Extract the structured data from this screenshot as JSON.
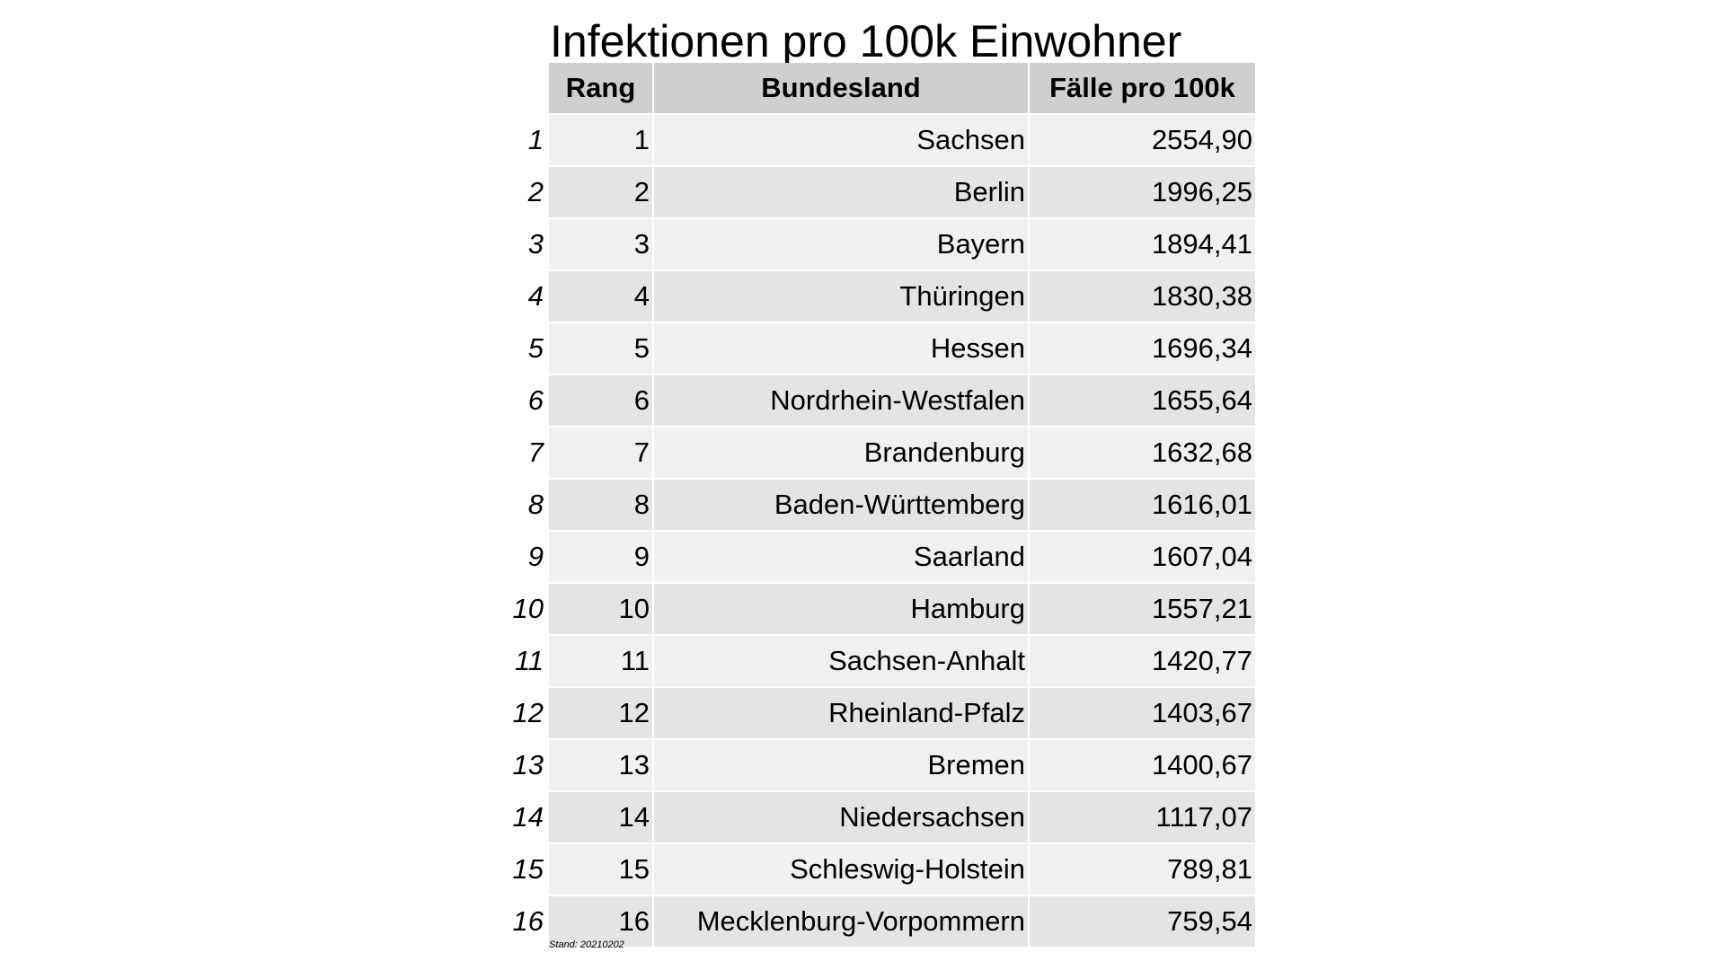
{
  "chart_data": {
    "type": "table",
    "title": "Infektionen pro 100k Einwohner",
    "columns": [
      "Rang",
      "Bundesland",
      "Fälle pro 100k"
    ],
    "rows": [
      {
        "index": "1",
        "rank": "1",
        "state": "Sachsen",
        "value": "2554,90"
      },
      {
        "index": "2",
        "rank": "2",
        "state": "Berlin",
        "value": "1996,25"
      },
      {
        "index": "3",
        "rank": "3",
        "state": "Bayern",
        "value": "1894,41"
      },
      {
        "index": "4",
        "rank": "4",
        "state": "Thüringen",
        "value": "1830,38"
      },
      {
        "index": "5",
        "rank": "5",
        "state": "Hessen",
        "value": "1696,34"
      },
      {
        "index": "6",
        "rank": "6",
        "state": "Nordrhein-Westfalen",
        "value": "1655,64"
      },
      {
        "index": "7",
        "rank": "7",
        "state": "Brandenburg",
        "value": "1632,68"
      },
      {
        "index": "8",
        "rank": "8",
        "state": "Baden-Württemberg",
        "value": "1616,01"
      },
      {
        "index": "9",
        "rank": "9",
        "state": "Saarland",
        "value": "1607,04"
      },
      {
        "index": "10",
        "rank": "10",
        "state": "Hamburg",
        "value": "1557,21"
      },
      {
        "index": "11",
        "rank": "11",
        "state": "Sachsen-Anhalt",
        "value": "1420,77"
      },
      {
        "index": "12",
        "rank": "12",
        "state": "Rheinland-Pfalz",
        "value": "1403,67"
      },
      {
        "index": "13",
        "rank": "13",
        "state": "Bremen",
        "value": "1400,67"
      },
      {
        "index": "14",
        "rank": "14",
        "state": "Niedersachsen",
        "value": "1117,07"
      },
      {
        "index": "15",
        "rank": "15",
        "state": "Schleswig-Holstein",
        "value": "789,81"
      },
      {
        "index": "16",
        "rank": "16",
        "state": "Mecklenburg-Vorpommern",
        "value": "759,54"
      }
    ],
    "footnote": "Stand: 20210202"
  }
}
